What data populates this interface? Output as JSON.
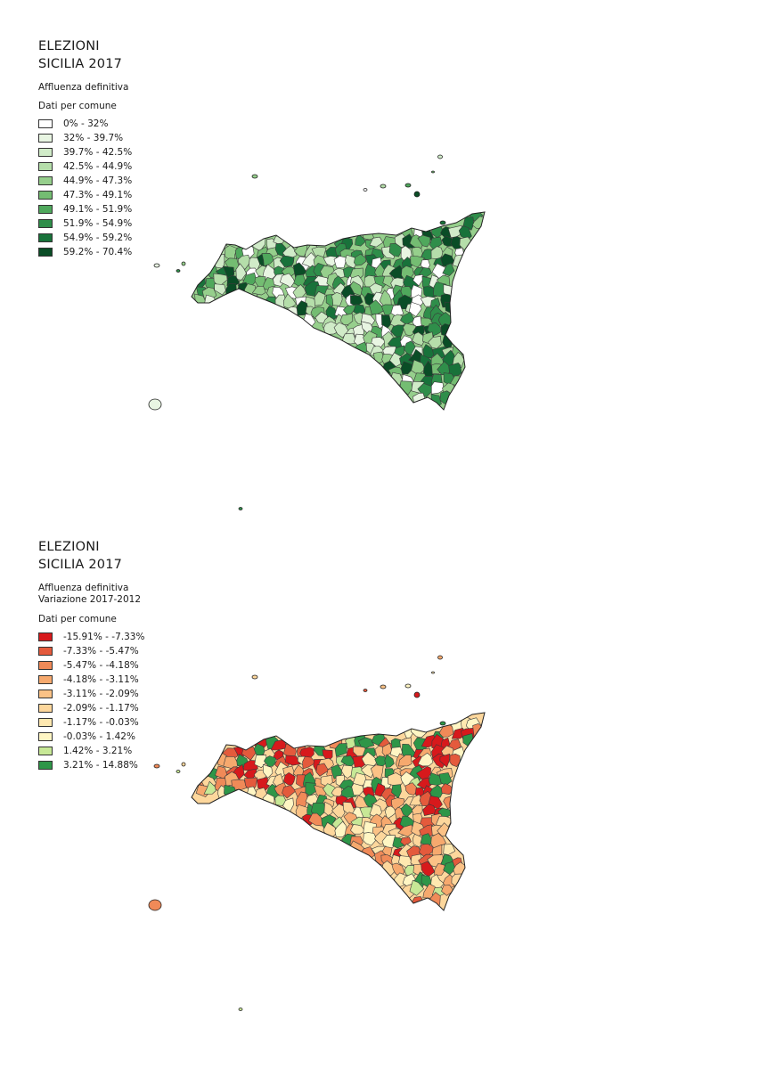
{
  "panels": [
    {
      "title_line1": "ELEZIONI",
      "title_line2": "SICILIA 2017",
      "subtitle_line1": "Affluenza definitiva",
      "subtitle_line2": "",
      "legend_heading": "Dati per comune",
      "legend": [
        {
          "label": "0% - 32%",
          "color": "#ffffff"
        },
        {
          "label": "32% - 39.7%",
          "color": "#e8f5e2"
        },
        {
          "label": "39.7% - 42.5%",
          "color": "#d0ebc8"
        },
        {
          "label": "42.5% - 44.9%",
          "color": "#b5deaa"
        },
        {
          "label": "44.9% - 47.3%",
          "color": "#96cf8c"
        },
        {
          "label": "47.3% - 49.1%",
          "color": "#74bd72"
        },
        {
          "label": "49.1% - 51.9%",
          "color": "#4fa85c"
        },
        {
          "label": "51.9% - 54.9%",
          "color": "#2f8e4a"
        },
        {
          "label": "54.9% - 59.2%",
          "color": "#18723a"
        },
        {
          "label": "59.2% - 70.4%",
          "color": "#0a4d26"
        }
      ]
    },
    {
      "title_line1": "ELEZIONI",
      "title_line2": "SICILIA 2017",
      "subtitle_line1": "Affluenza definitiva",
      "subtitle_line2": "Variazione 2017-2012",
      "legend_heading": "Dati per comune",
      "legend": [
        {
          "label": "-15.91% - -7.33%",
          "color": "#d7191c"
        },
        {
          "label": "-7.33% - -5.47%",
          "color": "#e45a3c"
        },
        {
          "label": "-5.47% - -4.18%",
          "color": "#f08a58"
        },
        {
          "label": "-4.18% - -3.11%",
          "color": "#f6a96e"
        },
        {
          "label": "-3.11% - -2.09%",
          "color": "#fbc286"
        },
        {
          "label": "-2.09% - -1.17%",
          "color": "#fdd79c"
        },
        {
          "label": "-1.17% - -0.03%",
          "color": "#fee8b0"
        },
        {
          "label": "-0.03% - 1.42%",
          "color": "#fff6c4"
        },
        {
          "label": "1.42% - 3.21%",
          "color": "#c7e896"
        },
        {
          "label": "3.21% - 14.88%",
          "color": "#2e9648"
        }
      ]
    }
  ]
}
